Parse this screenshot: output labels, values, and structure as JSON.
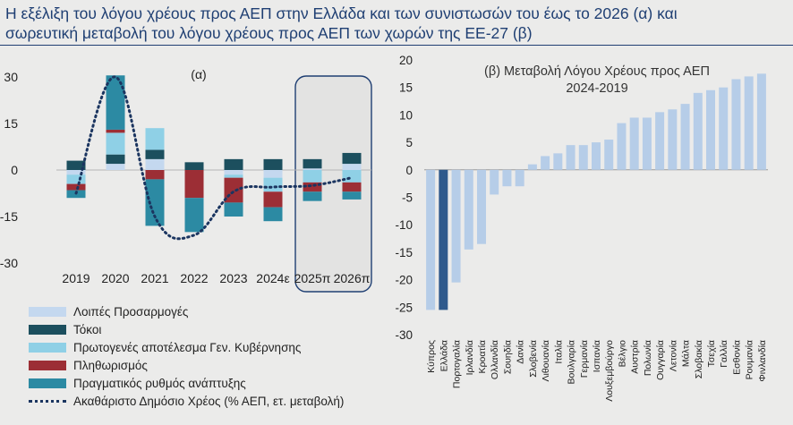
{
  "title": {
    "line1": "Η εξέλιξη του λόγου χρέους προς ΑΕΠ στην Ελλάδα και των συνιστωσών του έως το 2026 (α) και",
    "line2": "σωρευτική μεταβολή του λόγου χρέους προς ΑΕΠ των χωρών της ΕΕ-27 (β)"
  },
  "colors": {
    "other": "#c4d8ef",
    "interest": "#1c4f5e",
    "primary": "#8fd0e6",
    "inflation": "#9c2e35",
    "growth": "#2c8aa3",
    "debt_line": "#1b3560",
    "bar_b": "#b6cde8",
    "bar_b_highlight": "#2f5a8c"
  },
  "chart_data": [
    {
      "type": "bar",
      "stacked": true,
      "title": "(α)",
      "categories": [
        "2019",
        "2020",
        "2021",
        "2022",
        "2023",
        "2024ε",
        "2025π",
        "2026π"
      ],
      "ylim": [
        -30,
        30
      ],
      "yticks": [
        30,
        15,
        0,
        -15,
        -30
      ],
      "series": [
        {
          "name": "Λοιπές Προσαρμογές",
          "key": "other",
          "values": [
            -1.5,
            2,
            3.5,
            0,
            -1.5,
            -2.5,
            0.5,
            2
          ]
        },
        {
          "name": "Τόκοι",
          "key": "interest",
          "values": [
            3,
            3,
            3,
            2.5,
            3.5,
            3.5,
            3,
            3.5
          ]
        },
        {
          "name": "Πρωτογενές αποτέλεσμα Γεν. Κυβέρνησης",
          "key": "primary",
          "values": [
            -3,
            7,
            7,
            0,
            -1,
            -4.5,
            -4,
            -4
          ]
        },
        {
          "name": "Πληθωρισμός",
          "key": "inflation",
          "values": [
            -2,
            1,
            -3,
            -9,
            -8,
            -5,
            -3,
            -3
          ]
        },
        {
          "name": "Πραγματικός ρυθμός ανάπτυξης",
          "key": "growth",
          "values": [
            -2.5,
            17.5,
            -15,
            -11,
            -4.5,
            -4.5,
            -3,
            -2.5
          ]
        }
      ],
      "line": {
        "name": "Ακαθάριστο Δημόσιο Χρέος (% ΑΕΠ, ετ. μεταβολή)",
        "values": [
          -7.5,
          30,
          -15,
          -21,
          -7,
          -5.5,
          -5,
          -2.5
        ]
      },
      "highlight_box": [
        "2025π",
        "2026π"
      ]
    },
    {
      "type": "bar",
      "title_line1": "(β) Μεταβολή Λόγου Χρέους προς ΑΕΠ",
      "title_line2": "2024-2019",
      "ylim": [
        -30,
        20
      ],
      "yticks": [
        20,
        15,
        10,
        5,
        0,
        -5,
        -10,
        -15,
        -20,
        -25,
        -30
      ],
      "categories": [
        "Κύπρος",
        "Ελλάδα",
        "Πορτογαλία",
        "Ιρλανδία",
        "Κροατία",
        "Ολλανδία",
        "Σουηδία",
        "Δανία",
        "Σλοβενία",
        "Λιθουανία",
        "Ιταλία",
        "Βουλγαρία",
        "Γερμανία",
        "Ισπανία",
        "Λουξεμβούργο",
        "Βέλγιο",
        "Αυστρία",
        "Πολωνία",
        "Ουγγαρία",
        "Λετονία",
        "Μάλτα",
        "Σλοβακία",
        "Τσεχία",
        "Γαλλία",
        "Εσθονία",
        "Ρουμανία",
        "Φινλανδία"
      ],
      "values": [
        -25.5,
        -25.5,
        -20.5,
        -14.5,
        -13.5,
        -4.5,
        -3,
        -3,
        1,
        2.5,
        3,
        4.5,
        4.5,
        5,
        5.5,
        8.5,
        9.5,
        9.5,
        10.5,
        11,
        12,
        14,
        14.5,
        15,
        16.5,
        17,
        17.5
      ],
      "highlight": "Ελλάδα"
    }
  ]
}
